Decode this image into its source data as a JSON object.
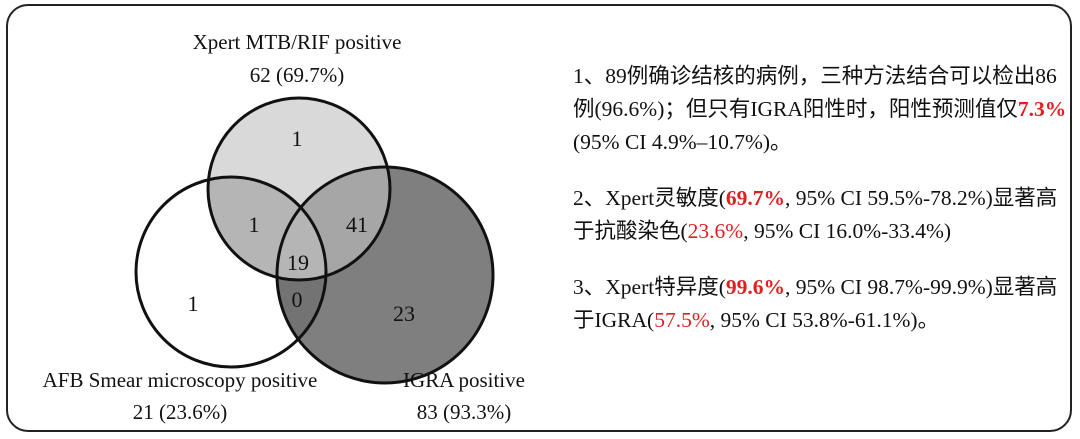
{
  "venn": {
    "sets": [
      {
        "label": "Xpert MTB/RIF positive",
        "count": "62 (69.7%)",
        "fill": "#d9d9d9"
      },
      {
        "label": "AFB Smear microscopy positive",
        "count": "21 (23.6%)",
        "fill": "#ffffff"
      },
      {
        "label": "IGRA positive",
        "count": "83 (93.3%)",
        "fill": "#7f7f7f"
      }
    ],
    "regions": {
      "xpert_only": "1",
      "xpert_afb": "1",
      "xpert_igra": "41",
      "all_three": "19",
      "afb_only": "1",
      "afb_igra": "0",
      "igra_only": "23"
    }
  },
  "notes": [
    {
      "segments": [
        {
          "text": "1、89例确诊结核的病例，三种方法结合可以检出86例(96.6%)；但只有IGRA阳性时，阳性预测值仅",
          "style": "normal"
        },
        {
          "text": "7.3%",
          "style": "red-bold"
        },
        {
          "text": " (95% CI 4.9%–10.7%)。",
          "style": "normal"
        }
      ]
    },
    {
      "segments": [
        {
          "text": "2、Xpert灵敏度(",
          "style": "normal"
        },
        {
          "text": "69.7%",
          "style": "red-bold"
        },
        {
          "text": ", 95% CI 59.5%-78.2%)显著高于抗酸染色(",
          "style": "normal"
        },
        {
          "text": "23.6%",
          "style": "red"
        },
        {
          "text": ", 95% CI 16.0%-33.4%)",
          "style": "normal"
        }
      ]
    },
    {
      "segments": [
        {
          "text": "3、Xpert特异度(",
          "style": "normal"
        },
        {
          "text": "99.6%",
          "style": "red-bold"
        },
        {
          "text": ", 95% CI 98.7%-99.9%)显著高于IGRA(",
          "style": "normal"
        },
        {
          "text": "57.5%",
          "style": "red"
        },
        {
          "text": ", 95% CI 53.8%-61.1%)。",
          "style": "normal"
        }
      ]
    }
  ],
  "colors": {
    "accent": "#e02020",
    "outline": "#111111",
    "light_overlap": "#b5b5b5",
    "dark_overlap": "#737373"
  }
}
